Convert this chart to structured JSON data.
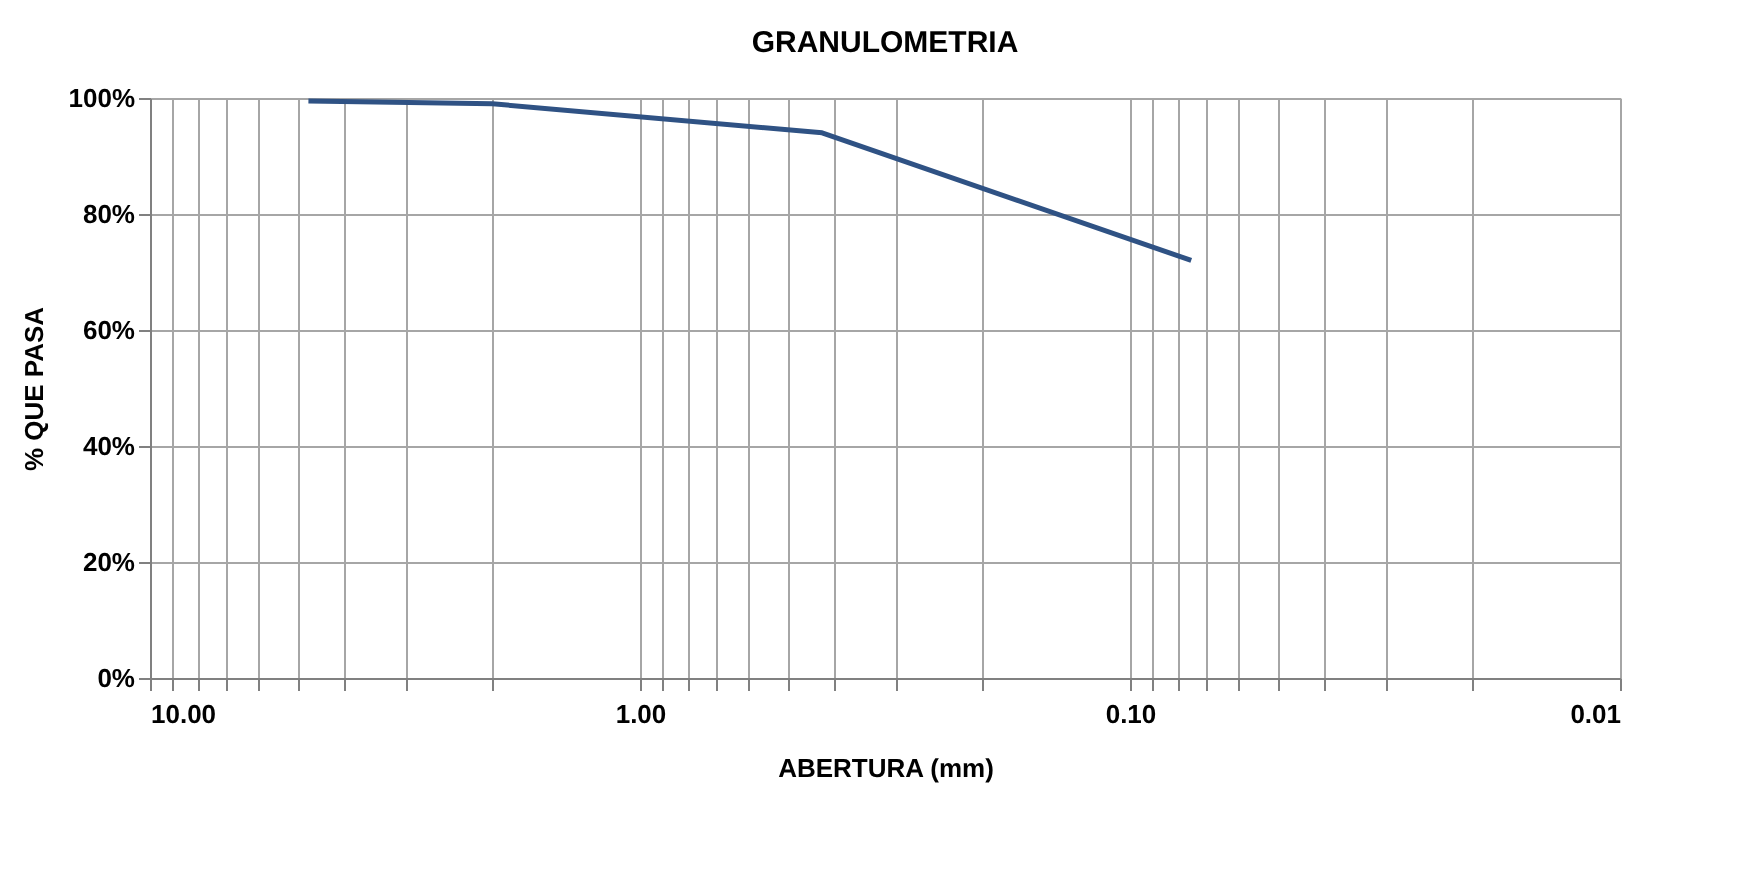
{
  "chart_data": {
    "type": "line",
    "title": "GRANULOMETRIA",
    "xlabel": "ABERTURA (mm)",
    "ylabel": "% QUE PASA",
    "x": [
      4.75,
      2.0,
      0.425,
      0.075
    ],
    "series": [
      {
        "color": "#2f5284",
        "values": [
          99.5,
          99,
          94,
          72
        ]
      }
    ],
    "log": "x",
    "xlim": [
      10,
      0.01
    ],
    "xticks": [
      {
        "value": 10,
        "label": "10.00"
      },
      {
        "value": 9,
        "label": null
      },
      {
        "value": 8,
        "label": null
      },
      {
        "value": 7,
        "label": null
      },
      {
        "value": 6,
        "label": null
      },
      {
        "value": 5,
        "label": null
      },
      {
        "value": 4,
        "label": null
      },
      {
        "value": 3,
        "label": null
      },
      {
        "value": 2,
        "label": null
      },
      {
        "value": 1,
        "label": "1.00"
      },
      {
        "value": 0.9,
        "label": null
      },
      {
        "value": 0.8,
        "label": null
      },
      {
        "value": 0.7,
        "label": null
      },
      {
        "value": 0.6,
        "label": null
      },
      {
        "value": 0.5,
        "label": null
      },
      {
        "value": 0.4,
        "label": null
      },
      {
        "value": 0.3,
        "label": null
      },
      {
        "value": 0.2,
        "label": null
      },
      {
        "value": 0.1,
        "label": "0.10"
      },
      {
        "value": 0.09,
        "label": null
      },
      {
        "value": 0.08,
        "label": null
      },
      {
        "value": 0.07,
        "label": null
      },
      {
        "value": 0.06,
        "label": null
      },
      {
        "value": 0.05,
        "label": null
      },
      {
        "value": 0.04,
        "label": null
      },
      {
        "value": 0.03,
        "label": null
      },
      {
        "value": 0.02,
        "label": null
      },
      {
        "value": 0.01,
        "label": "0.01"
      }
    ],
    "ylim": [
      0,
      100
    ],
    "yticks": [
      {
        "value": 0,
        "label": "0%"
      },
      {
        "value": 20,
        "label": "20%"
      },
      {
        "value": 40,
        "label": "40%"
      },
      {
        "value": 60,
        "label": "60%"
      },
      {
        "value": 80,
        "label": "80%"
      },
      {
        "value": 100,
        "label": "100%"
      }
    ],
    "grid": true,
    "marker": "none",
    "line_style": "solid"
  }
}
